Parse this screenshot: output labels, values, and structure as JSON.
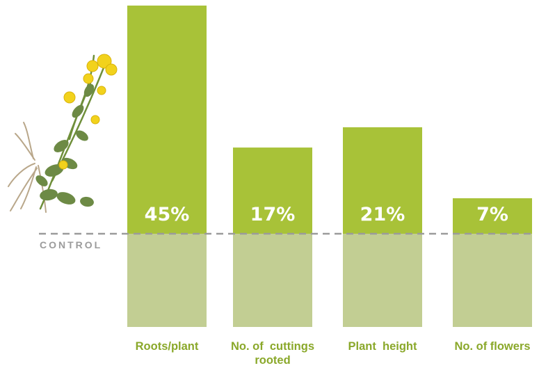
{
  "chart_data": {
    "type": "bar",
    "categories": [
      [
        "Roots/plant"
      ],
      [
        "No. of  cuttings",
        "rooted"
      ],
      [
        "Plant  height"
      ],
      [
        "No. of flowers"
      ]
    ],
    "values": [
      45,
      17,
      21,
      7
    ],
    "value_labels": [
      "45%",
      "17%",
      "21%",
      "7%"
    ],
    "baseline_label": "CONTROL",
    "colors": {
      "increase": "#a8c238",
      "control": "#c2ce93",
      "category_text": "#8aa82a",
      "baseline": "#9b9b9b"
    },
    "image": "plant-illustration-icon"
  }
}
